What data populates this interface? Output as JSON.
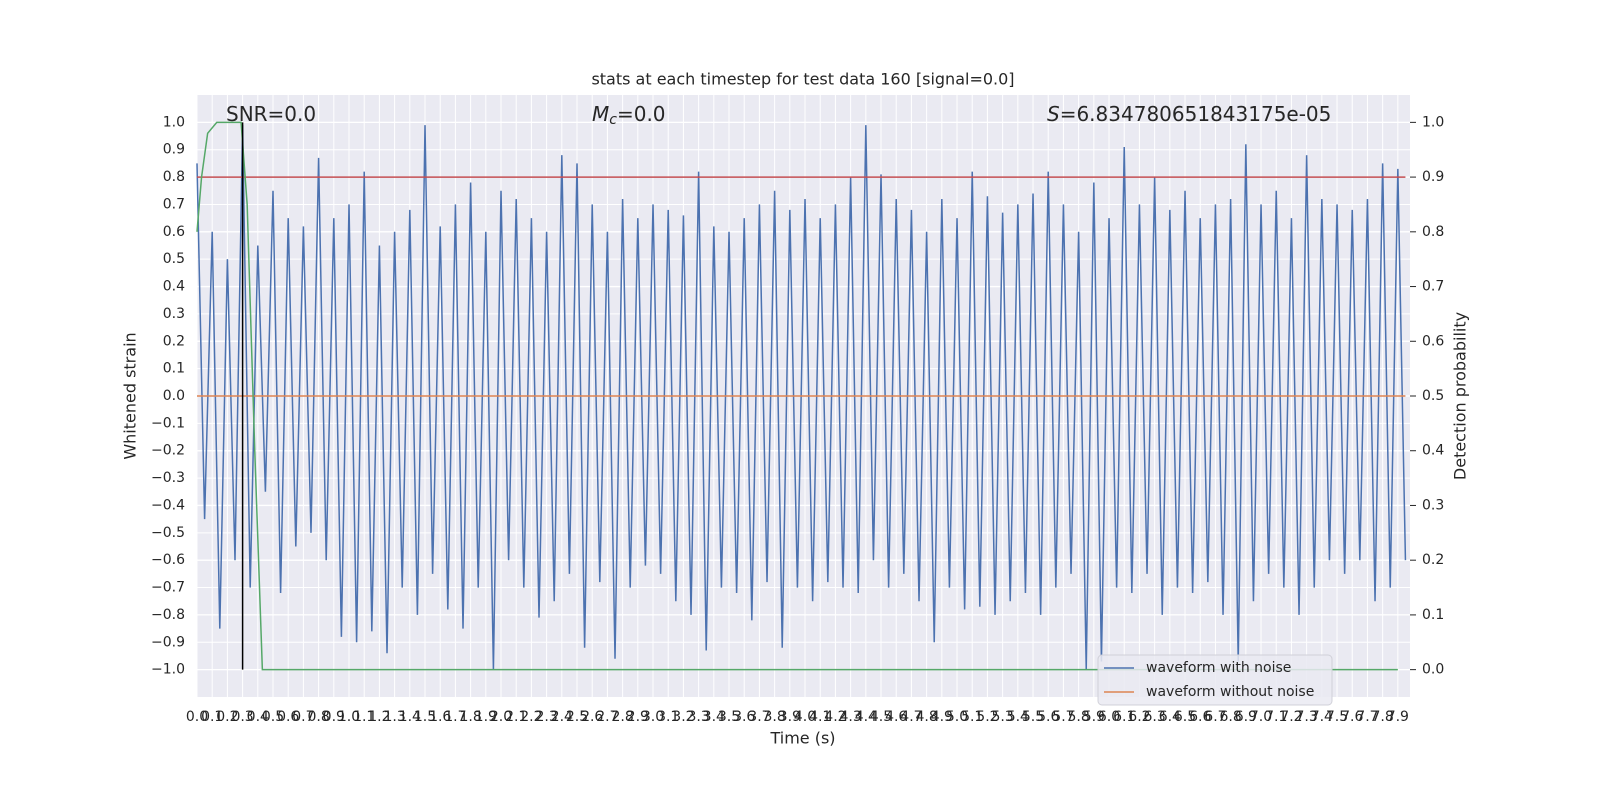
{
  "chart_data": {
    "type": "line",
    "title": "stats at each timestep for test data 160 [signal=0.0]",
    "x_label": "Time (s)",
    "y_label": "Whitened strain",
    "y2_label": "Detection probability",
    "annotations": [
      {
        "parts": [
          {
            "text": "SNR=0.0"
          }
        ]
      },
      {
        "parts": [
          {
            "text": "M",
            "style": "italic"
          },
          {
            "text": "c",
            "style": "sub"
          },
          {
            "text": "=0.0"
          }
        ]
      },
      {
        "parts": [
          {
            "text": "S",
            "style": "italic"
          },
          {
            "text": "=6.834780651843175e-05"
          }
        ]
      }
    ],
    "grid": true,
    "legend": "lower right",
    "xlim": [
      0,
      7.98
    ],
    "ylim": [
      -1.1,
      1.1
    ],
    "y2lim": [
      -0.05,
      1.05
    ],
    "xticks": [
      {
        "value": 0,
        "label": "0.0"
      },
      0.1,
      0.2,
      0.3,
      0.4,
      0.5,
      0.6,
      0.7,
      0.8,
      0.9,
      {
        "value": 1,
        "label": "1.0"
      },
      1.1,
      1.2,
      1.3,
      1.4,
      1.5,
      1.6,
      1.7,
      1.8,
      1.9,
      {
        "value": 2,
        "label": "2.0"
      },
      2.1,
      2.2,
      2.3,
      2.4,
      2.5,
      2.6,
      2.7,
      2.8,
      2.9,
      {
        "value": 3,
        "label": "3.0"
      },
      3.1,
      3.2,
      3.3,
      3.4,
      3.5,
      3.6,
      3.7,
      3.8,
      3.9,
      {
        "value": 4,
        "label": "4.0"
      },
      4.1,
      4.2,
      4.3,
      4.4,
      4.5,
      4.6,
      4.7,
      4.8,
      4.9,
      {
        "value": 5,
        "label": "5.0"
      },
      5.1,
      5.2,
      5.3,
      5.4,
      5.5,
      5.6,
      5.7,
      5.8,
      5.9,
      {
        "value": 6,
        "label": "6.0"
      },
      6.1,
      6.2,
      6.3,
      6.4,
      6.5,
      6.6,
      6.7,
      6.8,
      6.9,
      {
        "value": 7,
        "label": "7.0"
      },
      7.1,
      7.2,
      7.3,
      7.4,
      7.5,
      7.6,
      7.7,
      7.8,
      7.9
    ],
    "yticks": [
      {
        "value": -1.0,
        "label": "−1.0"
      },
      {
        "value": -0.9,
        "label": "−0.9"
      },
      {
        "value": -0.8,
        "label": "−0.8"
      },
      {
        "value": -0.7,
        "label": "−0.7"
      },
      {
        "value": -0.6,
        "label": "−0.6"
      },
      {
        "value": -0.5,
        "label": "−0.5"
      },
      {
        "value": -0.4,
        "label": "−0.4"
      },
      {
        "value": -0.3,
        "label": "−0.3"
      },
      {
        "value": -0.2,
        "label": "−0.2"
      },
      {
        "value": -0.1,
        "label": "−0.1"
      },
      {
        "value": 0,
        "label": "0.0"
      },
      0.1,
      0.2,
      0.3,
      0.4,
      0.5,
      0.6,
      0.7,
      0.8,
      0.9,
      {
        "value": 1,
        "label": "1.0"
      }
    ],
    "y2ticks": [
      {
        "value": 0,
        "label": "0.0"
      },
      0.1,
      0.2,
      0.3,
      0.4,
      0.5,
      0.6,
      0.7,
      0.8,
      0.9,
      {
        "value": 1,
        "label": "1.0"
      }
    ],
    "series": [
      {
        "name": "waveform with noise",
        "color": "#4c72b0",
        "x": [
          0,
          0.05,
          0.1,
          0.15,
          0.2,
          0.25,
          0.3,
          0.35,
          0.4,
          0.45,
          0.5,
          0.55,
          0.6,
          0.65,
          0.7,
          0.75,
          0.8,
          0.85,
          0.9,
          0.95,
          1,
          1.05,
          1.1,
          1.15,
          1.2,
          1.25,
          1.3,
          1.35,
          1.4,
          1.45,
          1.5,
          1.55,
          1.6,
          1.65,
          1.7,
          1.75,
          1.8,
          1.85,
          1.9,
          1.95,
          2,
          2.05,
          2.1,
          2.15,
          2.2,
          2.25,
          2.3,
          2.35,
          2.4,
          2.45,
          2.5,
          2.55,
          2.6,
          2.65,
          2.7,
          2.75,
          2.8,
          2.85,
          2.9,
          2.95,
          3,
          3.05,
          3.1,
          3.15,
          3.2,
          3.25,
          3.3,
          3.35,
          3.4,
          3.45,
          3.5,
          3.55,
          3.6,
          3.65,
          3.7,
          3.75,
          3.8,
          3.85,
          3.9,
          3.95,
          4,
          4.05,
          4.1,
          4.15,
          4.2,
          4.25,
          4.3,
          4.35,
          4.4,
          4.45,
          4.5,
          4.55,
          4.6,
          4.65,
          4.7,
          4.75,
          4.8,
          4.85,
          4.9,
          4.95,
          5,
          5.05,
          5.1,
          5.15,
          5.2,
          5.25,
          5.3,
          5.35,
          5.4,
          5.45,
          5.5,
          5.55,
          5.6,
          5.65,
          5.7,
          5.75,
          5.8,
          5.85,
          5.9,
          5.95,
          6,
          6.05,
          6.1,
          6.15,
          6.2,
          6.25,
          6.3,
          6.35,
          6.4,
          6.45,
          6.5,
          6.55,
          6.6,
          6.65,
          6.7,
          6.75,
          6.8,
          6.85,
          6.9,
          6.95,
          7,
          7.05,
          7.1,
          7.15,
          7.2,
          7.25,
          7.3,
          7.35,
          7.4,
          7.45,
          7.5,
          7.55,
          7.6,
          7.65,
          7.7,
          7.75,
          7.8,
          7.85,
          7.9,
          7.95
        ],
        "values": [
          0.85,
          -0.45,
          0.6,
          -0.85,
          0.5,
          -0.6,
          0.99,
          -0.7,
          0.55,
          -0.35,
          0.75,
          -0.72,
          0.65,
          -0.55,
          0.62,
          -0.5,
          0.87,
          -0.6,
          0.65,
          -0.88,
          0.7,
          -0.9,
          0.82,
          -0.86,
          0.55,
          -0.94,
          0.6,
          -0.7,
          0.68,
          -0.8,
          0.99,
          -0.65,
          0.62,
          -0.78,
          0.7,
          -0.85,
          0.78,
          -0.7,
          0.6,
          -1.0,
          0.75,
          -0.6,
          0.72,
          -0.7,
          0.65,
          -0.81,
          0.6,
          -0.75,
          0.88,
          -0.65,
          0.85,
          -0.92,
          0.7,
          -0.68,
          0.6,
          -0.96,
          0.72,
          -0.7,
          0.65,
          -0.62,
          0.7,
          -0.65,
          0.68,
          -0.75,
          0.66,
          -0.8,
          0.82,
          -0.93,
          0.62,
          -0.7,
          0.6,
          -0.72,
          0.65,
          -0.82,
          0.7,
          -0.68,
          0.75,
          -0.92,
          0.68,
          -0.7,
          0.72,
          -0.75,
          0.65,
          -0.68,
          0.7,
          -0.7,
          0.8,
          -0.72,
          0.99,
          -0.6,
          0.81,
          -0.7,
          0.72,
          -0.65,
          0.68,
          -0.75,
          0.6,
          -0.9,
          0.72,
          -0.7,
          0.65,
          -0.78,
          0.82,
          -0.77,
          0.73,
          -0.8,
          0.67,
          -0.75,
          0.7,
          -0.72,
          0.74,
          -0.8,
          0.82,
          -0.7,
          0.7,
          -0.65,
          0.6,
          -1.0,
          0.78,
          -0.97,
          0.65,
          -0.7,
          0.91,
          -0.72,
          0.7,
          -0.65,
          0.8,
          -0.8,
          0.68,
          -0.7,
          0.75,
          -0.72,
          0.65,
          -0.68,
          0.7,
          -0.8,
          0.72,
          -0.97,
          0.92,
          -0.75,
          0.7,
          -0.65,
          0.75,
          -0.7,
          0.65,
          -0.8,
          0.88,
          -0.7,
          0.72,
          -0.6,
          0.7,
          -0.65,
          0.68,
          -0.6,
          0.72,
          -0.75,
          0.85,
          -0.7,
          0.83,
          -0.6
        ]
      },
      {
        "name": "waveform without noise",
        "color": "#dd8452",
        "x": [
          0,
          7.95
        ],
        "values": [
          0,
          0
        ]
      },
      {
        "color": "#c44e52",
        "axis": "y2",
        "x": [
          0,
          7.95
        ],
        "values": [
          0.9,
          0.9
        ]
      },
      {
        "color": "#55a868",
        "axis": "y2",
        "x": [
          0,
          0.03,
          0.07,
          0.13,
          0.29,
          0.33,
          0.38,
          0.43,
          7.9
        ],
        "values": [
          0.8,
          0.9,
          0.98,
          1.0,
          1.0,
          0.85,
          0.4,
          0.0,
          0.0
        ]
      },
      {
        "color": "#000000",
        "x": [
          0.3,
          0.3
        ],
        "values": [
          -1.0,
          1.0
        ]
      }
    ]
  }
}
